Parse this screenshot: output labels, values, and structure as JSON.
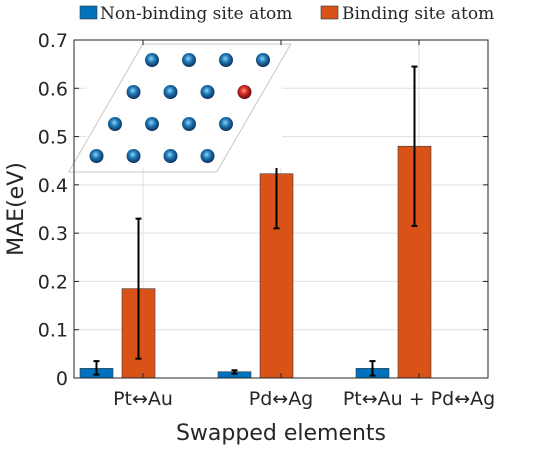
{
  "chart_data": {
    "type": "bar",
    "xlabel": "Swapped elements",
    "ylabel": "MAE(eV)",
    "ylim": [
      0,
      0.7
    ],
    "yticks": [
      0,
      0.1,
      0.2,
      0.3,
      0.4,
      0.5,
      0.6,
      0.7
    ],
    "ytick_labels": [
      "0",
      "0.1",
      "0.2",
      "0.3",
      "0.4",
      "0.5",
      "0.6",
      "0.7"
    ],
    "categories": [
      "Pt↔Au",
      "Pd↔Ag",
      "Pt↔Au + Pd↔Ag"
    ],
    "grid": true,
    "legend_position": "top, outside",
    "series": [
      {
        "name": "Non-binding site atom",
        "color": "#0072BD",
        "values": [
          0.02,
          0.013,
          0.02
        ],
        "err_low": [
          0.007,
          0.009,
          0.005
        ],
        "err_high": [
          0.035,
          0.016,
          0.035
        ]
      },
      {
        "name": "Binding site atom",
        "color": "#D95319",
        "values": [
          0.185,
          0.423,
          0.48
        ],
        "err_low": [
          0.04,
          0.31,
          0.315
        ],
        "err_high": [
          0.33,
          0.537,
          0.645
        ]
      }
    ],
    "inset": {
      "type": "atom-lattice",
      "rows": 4,
      "columns": 4,
      "atom_color": "#1f77b4",
      "highlight_color": "#d62728",
      "highlight": [
        1,
        3
      ]
    }
  }
}
